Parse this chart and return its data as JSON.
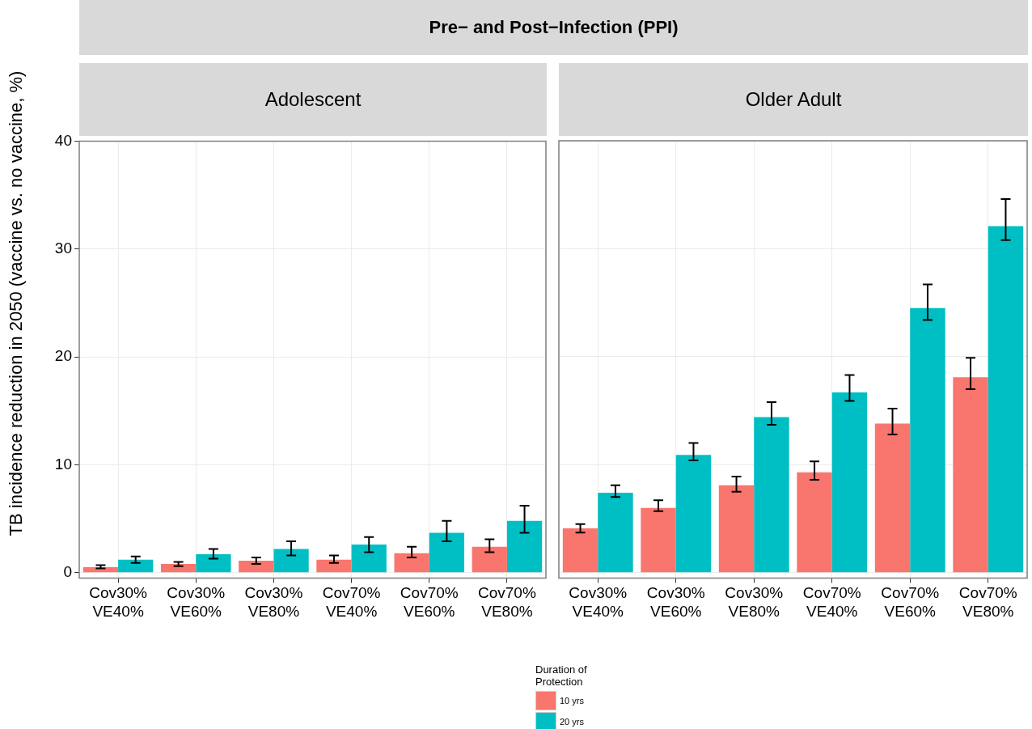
{
  "chart_data": [
    {
      "type": "bar",
      "title": "Pre− and Post−Infection (PPI)",
      "subtitle": "Adolescent",
      "ylabel": "TB incidence reduction in 2050 (vaccine vs. no vaccine, %)",
      "categories": [
        "Cov30% VE40%",
        "Cov30% VE60%",
        "Cov30% VE80%",
        "Cov70% VE40%",
        "Cov70% VE60%",
        "Cov70% VE80%"
      ],
      "series": [
        {
          "name": "10 yrs",
          "color": "#f8766d",
          "values": [
            0.5,
            0.8,
            1.1,
            1.2,
            1.8,
            2.4
          ],
          "errors": [
            [
              0.4,
              0.7
            ],
            [
              0.6,
              1.0
            ],
            [
              0.8,
              1.4
            ],
            [
              0.9,
              1.6
            ],
            [
              1.4,
              2.4
            ],
            [
              1.9,
              3.1
            ]
          ]
        },
        {
          "name": "20 yrs",
          "color": "#00bfc4",
          "values": [
            1.2,
            1.7,
            2.2,
            2.6,
            3.7,
            4.8
          ],
          "errors": [
            [
              0.9,
              1.5
            ],
            [
              1.3,
              2.2
            ],
            [
              1.6,
              2.9
            ],
            [
              1.9,
              3.3
            ],
            [
              2.9,
              4.8
            ],
            [
              3.7,
              6.2
            ]
          ]
        }
      ],
      "ylim": [
        -0.5,
        40
      ],
      "yticks": [
        0,
        10,
        20,
        30,
        40
      ],
      "grid": true,
      "legend": "bottom",
      "legend_title": "Duration of Protection"
    },
    {
      "type": "bar",
      "subtitle": "Older Adult",
      "categories": [
        "Cov30% VE40%",
        "Cov30% VE60%",
        "Cov30% VE80%",
        "Cov70% VE40%",
        "Cov70% VE60%",
        "Cov70% VE80%"
      ],
      "series": [
        {
          "color": "#f8766d",
          "values": [
            4.1,
            6.0,
            8.1,
            9.3,
            13.8,
            18.1
          ],
          "errors": [
            [
              3.7,
              4.5
            ],
            [
              5.7,
              6.7
            ],
            [
              7.5,
              8.9
            ],
            [
              8.6,
              10.3
            ],
            [
              12.8,
              15.2
            ],
            [
              17.0,
              19.9
            ]
          ]
        },
        {
          "color": "#00bfc4",
          "values": [
            7.4,
            10.9,
            14.4,
            16.7,
            24.5,
            32.1
          ],
          "errors": [
            [
              7.0,
              8.1
            ],
            [
              10.4,
              12.0
            ],
            [
              13.7,
              15.8
            ],
            [
              15.9,
              18.3
            ],
            [
              23.4,
              26.7
            ],
            [
              30.8,
              34.6
            ]
          ]
        }
      ],
      "ylim": [
        -0.5,
        40
      ],
      "yticks": [
        0,
        10,
        20,
        30,
        40
      ],
      "grid": true,
      "tick_labels": "x"
    }
  ]
}
